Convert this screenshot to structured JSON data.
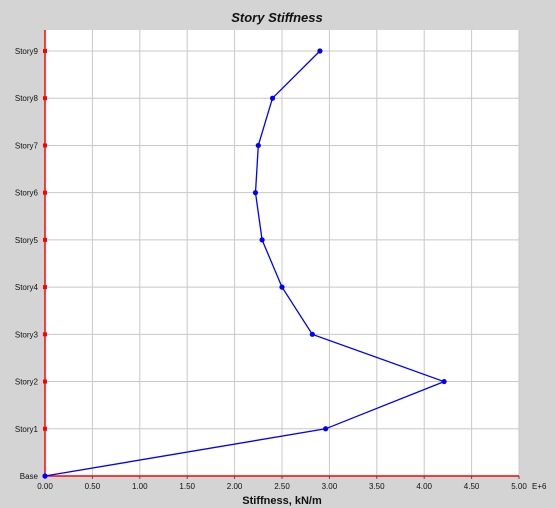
{
  "chart_data": {
    "type": "line",
    "title": "Story Stiffness",
    "xlabel": "Stiffness, kN/m",
    "ylabel": "",
    "x_unit_suffix": "E+6",
    "xlim": [
      0,
      5
    ],
    "x_ticks": [
      "0.00",
      "0.50",
      "1.00",
      "1.50",
      "2.00",
      "2.50",
      "3.00",
      "3.50",
      "4.00",
      "4.50",
      "5.00"
    ],
    "categories": [
      "Base",
      "Story1",
      "Story2",
      "Story3",
      "Story4",
      "Story5",
      "Story6",
      "Story7",
      "Story8",
      "Story9"
    ],
    "series": [
      {
        "values": [
          0.0,
          2.96,
          4.21,
          2.82,
          2.5,
          2.29,
          2.22,
          2.25,
          2.4,
          2.9
        ],
        "color": "#0000ff"
      }
    ],
    "grid": true,
    "axis_color": "#ff0000",
    "background": "#ffffff",
    "frame_color": "#d4d4d4"
  }
}
